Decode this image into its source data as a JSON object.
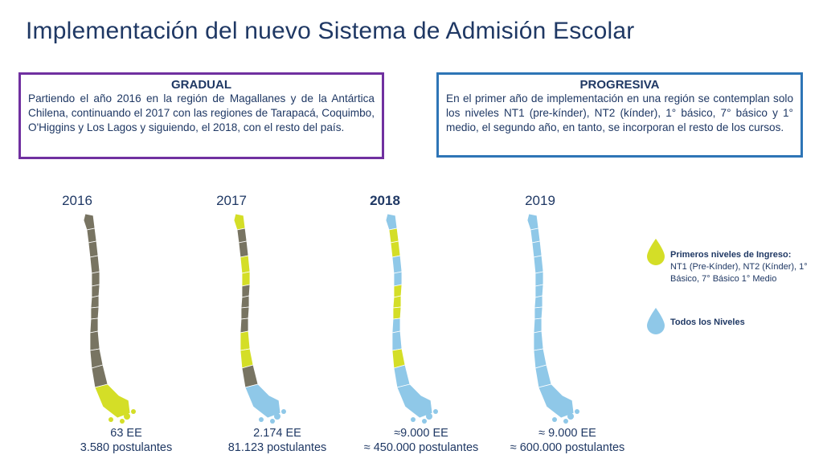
{
  "title": "Implementación del nuevo Sistema de Admisión Escolar",
  "gradual": {
    "heading": "GRADUAL",
    "text": "Partiendo el año 2016 en la región de Magallanes y de la Antártica Chilena, continuando el 2017 con las regiones de Tarapacá, Coquimbo, O'Higgins y Los Lagos y siguiendo, el 2018, con el resto del país."
  },
  "progresiva": {
    "heading": "PROGRESIVA",
    "text": "En el primer año de implementación en una región se contemplan solo los niveles NT1 (pre-kínder), NT2 (kínder), 1° básico, 7° básico y 1° medio, el segundo año, en tanto, se incorporan el resto de los cursos."
  },
  "years": [
    {
      "year": "2016",
      "ee": "63 EE",
      "postulantes": "3.580 postulantes"
    },
    {
      "year": "2017",
      "ee": "2.174 EE",
      "postulantes": "81.123 postulantes"
    },
    {
      "year": "2018",
      "ee": "≈9.000 EE",
      "postulantes": "≈ 450.000 postulantes"
    },
    {
      "year": "2019",
      "ee": "≈ 9.000 EE",
      "postulantes": "≈ 600.000 postulantes"
    }
  ],
  "legend": {
    "primeros_title": "Primeros niveles de Ingreso:",
    "primeros_desc": "NT1 (Pre-Kínder), NT2 (Kínder), 1° Básico, 7° Básico 1° Medio",
    "todos": "Todos los Niveles"
  },
  "colors": {
    "gray": "#787462",
    "yellow": "#d4de27",
    "blue": "#8fc8e8",
    "purple": "#7030a0",
    "navy": "#1f3864",
    "boxblue": "#2e75b6"
  }
}
